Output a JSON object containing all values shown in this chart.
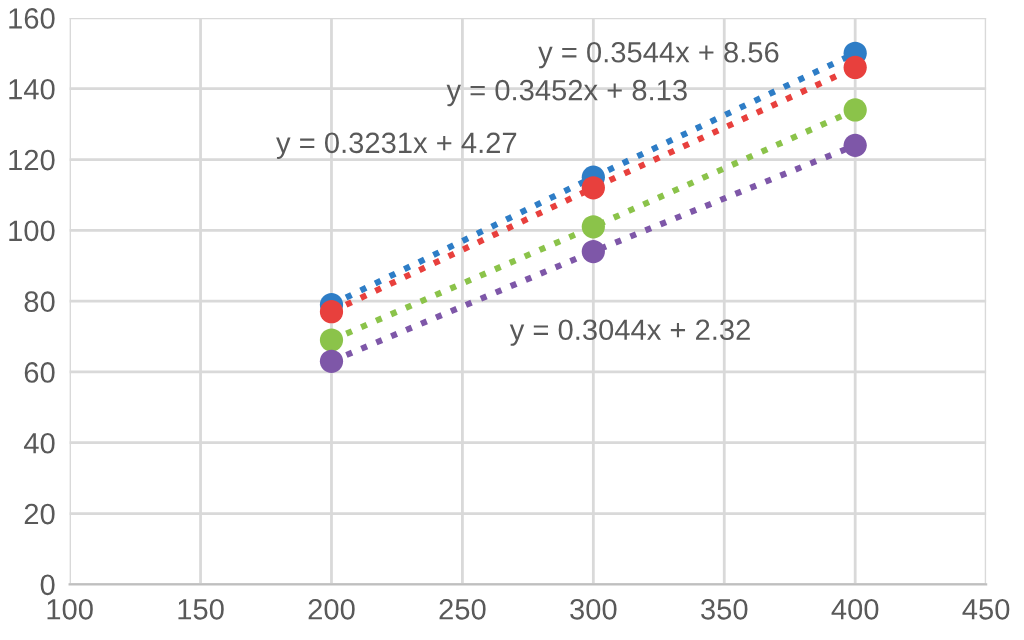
{
  "chart_data": {
    "type": "scatter",
    "x": [
      200,
      300,
      400
    ],
    "series": [
      {
        "color": "#2e7dc6",
        "values": [
          79,
          115,
          150
        ],
        "marker": "circle"
      },
      {
        "color": "#e8403d",
        "values": [
          77,
          112,
          146
        ],
        "marker": "circle"
      },
      {
        "color": "#8bc34a",
        "values": [
          69,
          101,
          134
        ],
        "marker": "circle"
      },
      {
        "color": "#7e57a8",
        "values": [
          63,
          94,
          124
        ],
        "marker": "circle"
      },
      {
        "type": "line",
        "color": "#2e7dc6",
        "values": [
          79,
          115,
          150
        ],
        "line_style": "dotted",
        "marker": "none"
      },
      {
        "type": "line",
        "color": "#e8403d",
        "values": [
          77,
          112,
          146
        ],
        "line_style": "dotted",
        "marker": "none"
      },
      {
        "type": "line",
        "color": "#8bc34a",
        "values": [
          69,
          101,
          134
        ],
        "line_style": "dotted",
        "marker": "none"
      },
      {
        "type": "line",
        "color": "#7e57a8",
        "values": [
          63,
          94,
          124
        ],
        "line_style": "dotted",
        "marker": "none"
      }
    ],
    "annotations": [
      "y = 0.3544x + 8.56",
      "y = 0.3452x + 8.13",
      "y = 0.3231x + 4.27",
      "y = 0.3044x + 2.32"
    ],
    "xlim": [
      100,
      450
    ],
    "xticks": [
      100,
      150,
      200,
      250,
      300,
      350,
      400,
      450
    ],
    "ylim": [
      0,
      160
    ],
    "yticks": [
      0,
      20,
      40,
      60,
      80,
      100,
      120,
      140,
      160
    ],
    "grid": true
  }
}
